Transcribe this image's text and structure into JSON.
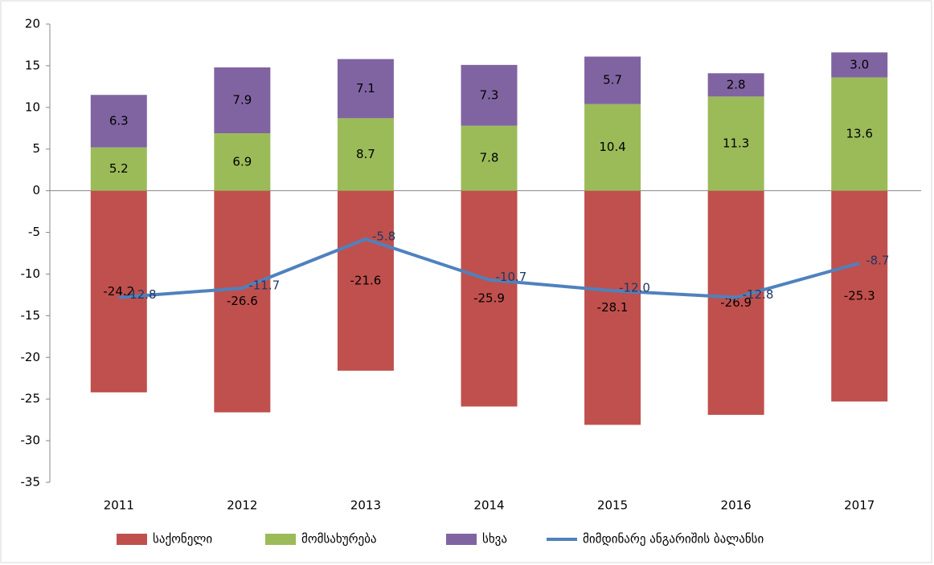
{
  "chart_data": {
    "type": "bar",
    "categories": [
      "2011",
      "2012",
      "2013",
      "2014",
      "2015",
      "2016",
      "2017"
    ],
    "series": [
      {
        "name": "საქონელი",
        "color": "#c0504d",
        "values": [
          -24.2,
          -26.6,
          -21.6,
          -25.9,
          -28.1,
          -26.9,
          -25.3
        ],
        "value_labels": [
          "-24.2",
          "-26.6",
          "-21.6",
          "-25.9",
          "-28.1",
          "-26.9",
          "-25.3"
        ]
      },
      {
        "name": "მომსახურება",
        "color": "#9bbb59",
        "values": [
          5.2,
          6.9,
          8.7,
          7.8,
          10.4,
          11.3,
          13.6
        ],
        "value_labels": [
          "5.2",
          "6.9",
          "8.7",
          "7.8",
          "10.4",
          "11.3",
          "13.6"
        ]
      },
      {
        "name": "სხვა",
        "color": "#8064a2",
        "values": [
          6.3,
          7.9,
          7.1,
          7.3,
          5.7,
          2.8,
          3.0
        ],
        "value_labels": [
          "6.3",
          "7.9",
          "7.1",
          "7.3",
          "5.7",
          "2.8",
          "3.0"
        ]
      },
      {
        "name": "მიმდინარე ანგარიშის ბალანსი",
        "type": "line",
        "color": "#4f81bd",
        "values": [
          -12.8,
          -11.7,
          -5.8,
          -10.7,
          -12.0,
          -12.8,
          -8.7
        ],
        "value_labels": [
          "-12.8",
          "-11.7",
          "-5.8",
          "-10.7",
          "-12.0",
          "-12.8",
          "-8.7"
        ]
      }
    ],
    "ylim": [
      -35,
      20
    ],
    "yticks": [
      -35,
      -30,
      -25,
      -20,
      -15,
      -10,
      -5,
      0,
      5,
      10,
      15,
      20
    ],
    "stacked": true,
    "legend": "bottom"
  }
}
